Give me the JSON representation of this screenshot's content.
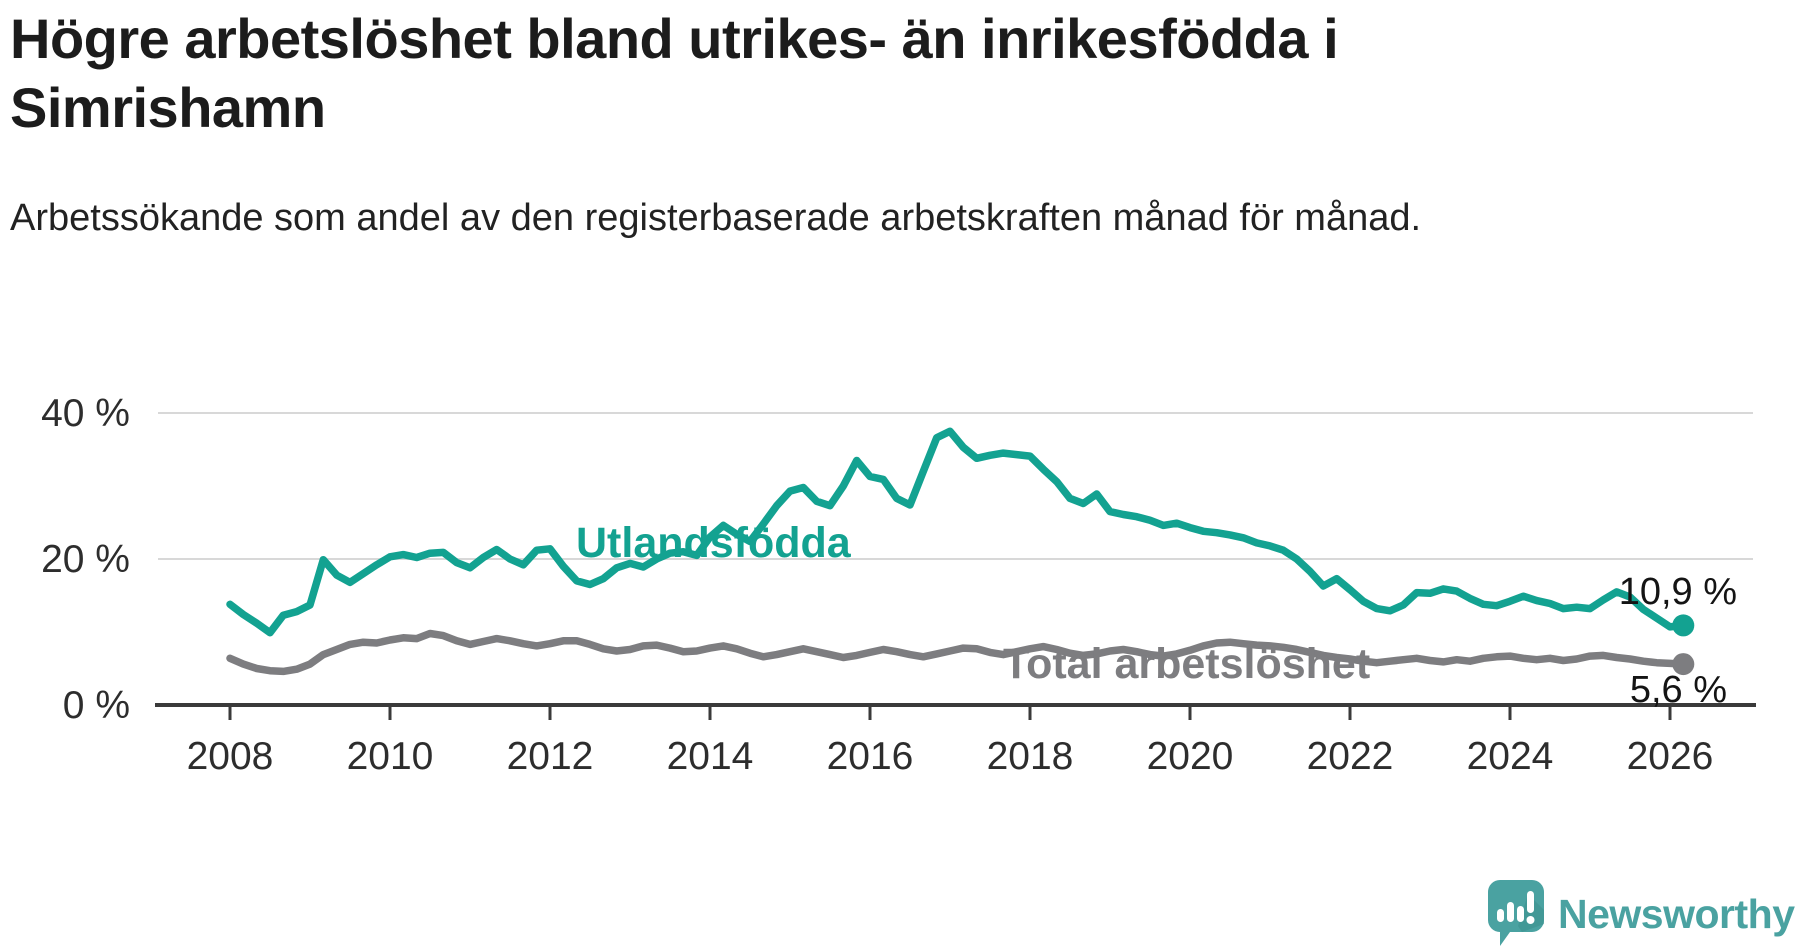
{
  "header": {
    "title": "Högre arbetslöshet bland utrikes- än inrikesfödda i Simrishamn",
    "subtitle": "Arbetssökande som andel av den registerbaserade arbetskraften månad för månad."
  },
  "footer": {
    "brand_name": "Newsworthy",
    "logo_color": "#4aa2a1"
  },
  "colors": {
    "foreign_born_line": "#13a291",
    "total_line": "#7d7d80",
    "gridline": "#d8d8d8",
    "axis": "#3a3a3a",
    "text_dark": "#1c1c1c"
  },
  "chart_data": {
    "type": "line",
    "title": "Högre arbetslöshet bland utrikes- än inrikesfödda i Simrishamn",
    "subtitle": "Arbetssökande som andel av den registerbaserade arbetskraften månad för månad.",
    "grid": "horizontal-only",
    "legend": "inline-labels",
    "x_axis": {
      "start": 2008.0,
      "step_years": 0.1666667,
      "tick_labels": [
        2008,
        2010,
        2012,
        2014,
        2016,
        2018,
        2020,
        2022,
        2024,
        2026
      ]
    },
    "y_axis": {
      "unit": "%",
      "range": [
        0,
        44
      ],
      "ticks": [
        {
          "label": "0 %",
          "value": 0
        },
        {
          "label": "20 %",
          "value": 20
        },
        {
          "label": "40 %",
          "value": 40
        }
      ]
    },
    "series": [
      {
        "name": "Utlandsfödda",
        "color": "#13a291",
        "end_label": "10,9 %",
        "end_value": 10.9,
        "values": [
          13.8,
          12.4,
          11.2,
          9.9,
          12.3,
          12.8,
          13.7,
          19.9,
          17.8,
          16.8,
          18.0,
          19.2,
          20.3,
          20.6,
          20.2,
          20.8,
          20.9,
          19.5,
          18.8,
          20.2,
          21.3,
          20.0,
          19.2,
          21.2,
          21.4,
          19.0,
          17.0,
          16.5,
          17.3,
          18.8,
          19.4,
          18.9,
          20.0,
          20.8,
          21.0,
          20.5,
          23.0,
          24.6,
          23.4,
          22.4,
          24.8,
          27.3,
          29.3,
          29.8,
          27.9,
          27.3,
          30.0,
          33.5,
          31.3,
          30.9,
          28.3,
          27.4,
          32.0,
          36.6,
          37.5,
          35.3,
          33.8,
          34.2,
          34.5,
          34.3,
          34.1,
          32.3,
          30.6,
          28.3,
          27.6,
          28.9,
          26.5,
          26.1,
          25.8,
          25.3,
          24.6,
          24.9,
          24.3,
          23.8,
          23.6,
          23.3,
          22.9,
          22.2,
          21.8,
          21.2,
          20.0,
          18.3,
          16.3,
          17.3,
          15.8,
          14.2,
          13.2,
          12.9,
          13.7,
          15.4,
          15.3,
          15.9,
          15.6,
          14.6,
          13.8,
          13.6,
          14.2,
          14.9,
          14.3,
          13.9,
          13.2,
          13.4,
          13.2,
          14.4,
          15.5,
          14.8,
          13.1,
          11.9,
          10.7,
          10.9
        ]
      },
      {
        "name": "Total arbetslöshet",
        "color": "#7d7d80",
        "end_label": "5,6 %",
        "end_value": 5.6,
        "values": [
          6.4,
          5.6,
          5.0,
          4.7,
          4.6,
          4.9,
          5.6,
          6.9,
          7.6,
          8.3,
          8.6,
          8.5,
          8.9,
          9.2,
          9.1,
          9.8,
          9.5,
          8.8,
          8.3,
          8.7,
          9.1,
          8.8,
          8.4,
          8.1,
          8.4,
          8.8,
          8.8,
          8.3,
          7.7,
          7.4,
          7.6,
          8.1,
          8.2,
          7.8,
          7.3,
          7.4,
          7.8,
          8.1,
          7.7,
          7.1,
          6.6,
          6.9,
          7.3,
          7.7,
          7.3,
          6.9,
          6.5,
          6.8,
          7.2,
          7.6,
          7.3,
          6.9,
          6.6,
          7.0,
          7.4,
          7.8,
          7.7,
          7.2,
          6.9,
          7.3,
          7.7,
          8.0,
          7.6,
          7.1,
          6.8,
          7.0,
          7.4,
          7.6,
          7.3,
          6.9,
          6.7,
          7.0,
          7.5,
          8.1,
          8.5,
          8.6,
          8.4,
          8.2,
          8.1,
          7.9,
          7.6,
          7.2,
          6.8,
          6.5,
          6.3,
          6.0,
          5.8,
          6.0,
          6.2,
          6.4,
          6.1,
          5.9,
          6.2,
          6.0,
          6.4,
          6.6,
          6.7,
          6.4,
          6.2,
          6.4,
          6.1,
          6.3,
          6.7,
          6.8,
          6.5,
          6.3,
          6.0,
          5.8,
          5.7,
          5.6
        ]
      }
    ]
  }
}
